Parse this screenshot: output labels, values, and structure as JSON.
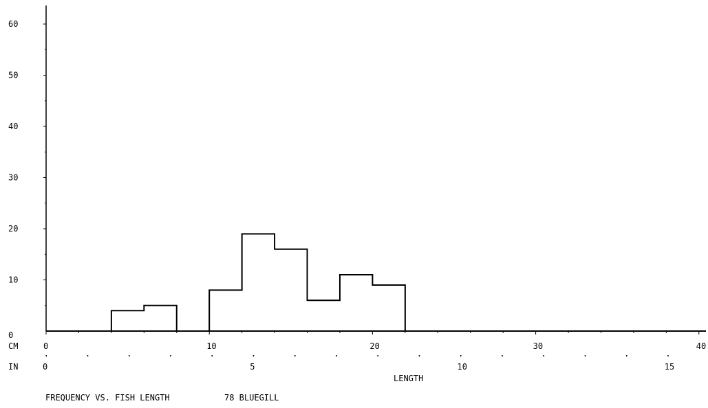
{
  "chart_data": {
    "type": "bar",
    "title": "FREQUENCY VS. FISH LENGTH",
    "subtitle": "78 BLUEGILL",
    "xlabel": "LENGTH",
    "ylabel": "",
    "x_unit_primary": "CM",
    "x_unit_secondary": "IN",
    "bin_width_cm": 2,
    "bins_cm": [
      4,
      6,
      10,
      12,
      14,
      16,
      18,
      20
    ],
    "values": [
      4,
      5,
      8,
      19,
      16,
      6,
      11,
      9
    ],
    "xlim_cm": [
      0,
      41
    ],
    "ylim": [
      0,
      65
    ],
    "y_ticks": [
      0,
      10,
      20,
      30,
      40,
      50,
      60
    ],
    "y_tick_labels": [
      "0",
      "10",
      "20",
      "30",
      "40",
      "50",
      "60"
    ],
    "x_ticks_cm": [
      0,
      10,
      20,
      30,
      40
    ],
    "x_tick_labels_cm": [
      "0",
      "10",
      "20",
      "30",
      "40"
    ],
    "x_ticks_in": [
      0,
      5,
      10,
      15
    ],
    "x_tick_labels_in": [
      "0",
      "5",
      "10",
      "15"
    ],
    "grid": false,
    "colors": {
      "line": "#000000",
      "background": "#ffffff"
    }
  }
}
